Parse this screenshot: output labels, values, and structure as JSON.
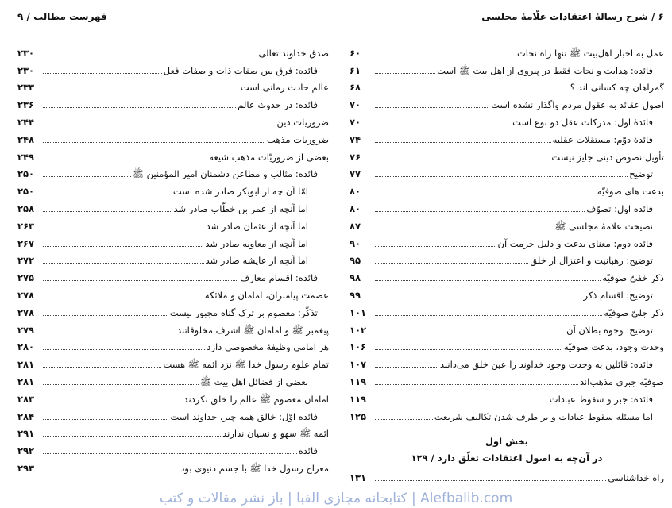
{
  "right_page": {
    "running_head": "۶ / شرح رسالهٔ اعتقادات علّامهٔ مجلسی",
    "entries": [
      {
        "title": "عمل به اخبار اهل‌بیت ﷺ تنها راه نجات",
        "page": "۶۰",
        "level": 0
      },
      {
        "title": "فائده: هدایت و نجات فقط در پیروی از اهل بیت ﷺ است",
        "page": "۶۱",
        "level": 1
      },
      {
        "title": "گمراهان چه کسانی اند ؟",
        "page": "۶۸",
        "level": 0
      },
      {
        "title": "اصول عقائد به عقول مردم واگذار نشده است",
        "page": "۷۰",
        "level": 0
      },
      {
        "title": "فائدهٔ اول: مدرکات عقل دو نوع است",
        "page": "۷۰",
        "level": 1
      },
      {
        "title": "فائدهٔ دوّم: مستقلات عقلیه",
        "page": "۷۴",
        "level": 1
      },
      {
        "title": "تأویل نصوص دینی جایز نیست",
        "page": "۷۶",
        "level": 0
      },
      {
        "title": "توضیح",
        "page": "۷۷",
        "level": 1
      },
      {
        "title": "بدعت های صوفیّه",
        "page": "۸۰",
        "level": 0
      },
      {
        "title": "فائده اول: تصوّف",
        "page": "۸۰",
        "level": 1
      },
      {
        "title": "نصیحت علامهٔ مجلسی ﷺ",
        "page": "۸۷",
        "level": 1
      },
      {
        "title": "فائده دوم: معنای بدعت و دلیل حرمت آن",
        "page": "۹۰",
        "level": 1
      },
      {
        "title": "توضیح: رهبانیت و اعتزال از خلق",
        "page": "۹۵",
        "level": 1
      },
      {
        "title": "ذکر خفیّ صوفیّه",
        "page": "۹۸",
        "level": 0
      },
      {
        "title": "توضیح: اقسام ذکر",
        "page": "۹۹",
        "level": 1
      },
      {
        "title": "ذکر جلیّ صوفیّه",
        "page": "۱۰۱",
        "level": 0
      },
      {
        "title": "توضیح: وجوه بطلان آن",
        "page": "۱۰۲",
        "level": 1
      },
      {
        "title": "وحدت وجود، بدعت صوفیّه",
        "page": "۱۰۶",
        "level": 0
      },
      {
        "title": "فائده: قائلین به وحدت وجود خداوند را عین خلق می‌دانند",
        "page": "۱۰۷",
        "level": 1
      },
      {
        "title": "صوفیّه جبری مذهب‌اند",
        "page": "۱۱۹",
        "level": 0
      },
      {
        "title": "فائده: جبر و سقوط عبادات",
        "page": "۱۱۹",
        "level": 1
      },
      {
        "title": "اما مسئله سقوط عبادات و بر طرف شدن تکالیف شریعت",
        "page": "۱۲۵",
        "level": 1
      }
    ],
    "section_title": "بخش اول",
    "section_subtitle": "در آن‌چه به اصول اعتقادات تعلّق دارد / ۱۲۹",
    "after_section": [
      {
        "title": "راه خداشناسی",
        "page": "۱۳۱",
        "level": 0
      }
    ]
  },
  "left_page": {
    "running_head": "فهرست مطالب / ۹",
    "entries": [
      {
        "title": "صدق خداوند تعالی",
        "page": "۲۳۰",
        "level": 0
      },
      {
        "title": "فائده: فرق بین صفات ذات و صفات فعل",
        "page": "۲۳۰",
        "level": 1
      },
      {
        "title": "عالم حادث زمانی است",
        "page": "۲۳۳",
        "level": 0
      },
      {
        "title": "فائده: در حدوث عالم",
        "page": "۲۳۶",
        "level": 1
      },
      {
        "title": "ضروریات دین",
        "page": "۲۴۴",
        "level": 0
      },
      {
        "title": "ضروریات مذهب",
        "page": "۲۴۸",
        "level": 0
      },
      {
        "title": "بعضی از ضروریّات مذهب شیعه",
        "page": "۲۴۹",
        "level": 0
      },
      {
        "title": "فائده: مثالب و مطاعن دشمنان امیر المؤمنین ﷺ",
        "page": "۲۵۰",
        "level": 1
      },
      {
        "title": "امّا آن چه از ابوبکر صادر شده است",
        "page": "۲۵۰",
        "level": 2
      },
      {
        "title": "اما آنچه از عمر بن خطّاب صادر شد",
        "page": "۲۵۸",
        "level": 2
      },
      {
        "title": "اما آنچه از عثمان صادر شد",
        "page": "۲۶۳",
        "level": 2
      },
      {
        "title": "اما آنچه از معاویه صادر شد",
        "page": "۲۶۷",
        "level": 2
      },
      {
        "title": "اما آنچه از عایشه صادر شد",
        "page": "۲۷۲",
        "level": 2
      },
      {
        "title": "فائده: اقسام معارف",
        "page": "۲۷۵",
        "level": 1
      },
      {
        "title": "عصمت پیامبران، امامان و ملائکه",
        "page": "۲۷۸",
        "level": 0
      },
      {
        "title": "تذکّر: معصوم بر ترک گناه مجبور نیست",
        "page": "۲۷۸",
        "level": 1
      },
      {
        "title": "پیغمبر ﷺ و امامان ﷺ اشرف مخلوقاتند",
        "page": "۲۷۹",
        "level": 0
      },
      {
        "title": "هر امامی وظیفهٔ مخصوصی دارد",
        "page": "۲۸۰",
        "level": 0
      },
      {
        "title": "تمام علوم رسول خدا ﷺ نزد ائمه ﷺ هست",
        "page": "۲۸۱",
        "level": 0
      },
      {
        "title": "بعضی از فضائل اهل بیت ﷺ",
        "page": "۲۸۱",
        "level": 2
      },
      {
        "title": "امامان معصوم ﷺ عالم را خلق نکردند",
        "page": "۲۸۳",
        "level": 0
      },
      {
        "title": "فائده اوّل: خالق همه چیز، خداوند است",
        "page": "۲۸۴",
        "level": 1
      },
      {
        "title": "ائمه ﷺ سهو و نسیان ندارند",
        "page": "۲۹۱",
        "level": 0
      },
      {
        "title": "فائده",
        "page": "۲۹۲",
        "level": 1
      },
      {
        "title": "معراج رسول خدا ﷺ با جسم دنیوی بود",
        "page": "۲۹۳",
        "level": 0
      }
    ]
  },
  "watermark": "Alefbalib.com | کتابخانه مجازی الفبا | باز نشر مقالات و کتب",
  "colors": {
    "text": "#111111",
    "watermark": "#9fb2d9",
    "background": "#ffffff"
  }
}
